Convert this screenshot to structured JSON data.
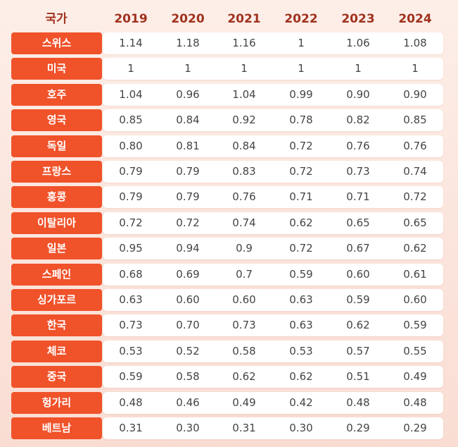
{
  "table": {
    "header": [
      "국가",
      "2019",
      "2020",
      "2021",
      "2022",
      "2023",
      "2024"
    ],
    "rows": [
      [
        "스위스",
        "1.14",
        "1.18",
        "1.16",
        "1",
        "1.06",
        "1.08"
      ],
      [
        "미국",
        "1",
        "1",
        "1",
        "1",
        "1",
        "1"
      ],
      [
        "호주",
        "1.04",
        "0.96",
        "1.04",
        "0.99",
        "0.90",
        "0.90"
      ],
      [
        "영국",
        "0.85",
        "0.84",
        "0.92",
        "0.78",
        "0.82",
        "0.85"
      ],
      [
        "독일",
        "0.80",
        "0.81",
        "0.84",
        "0.72",
        "0.76",
        "0.76"
      ],
      [
        "프랑스",
        "0.79",
        "0.79",
        "0.83",
        "0.72",
        "0.73",
        "0.74"
      ],
      [
        "홍콩",
        "0.79",
        "0.79",
        "0.76",
        "0.71",
        "0.71",
        "0.72"
      ],
      [
        "이탈리아",
        "0.72",
        "0.72",
        "0.74",
        "0.62",
        "0.65",
        "0.65"
      ],
      [
        "일본",
        "0.95",
        "0.94",
        "0.9",
        "0.72",
        "0.67",
        "0.62"
      ],
      [
        "스페인",
        "0.68",
        "0.69",
        "0.7",
        "0.59",
        "0.60",
        "0.61"
      ],
      [
        "싱가포르",
        "0.63",
        "0.60",
        "0.60",
        "0.63",
        "0.59",
        "0.60"
      ],
      [
        "한국",
        "0.73",
        "0.70",
        "0.73",
        "0.63",
        "0.62",
        "0.59"
      ],
      [
        "체코",
        "0.53",
        "0.52",
        "0.58",
        "0.53",
        "0.57",
        "0.55"
      ],
      [
        "중국",
        "0.59",
        "0.58",
        "0.62",
        "0.62",
        "0.51",
        "0.49"
      ],
      [
        "헝가리",
        "0.48",
        "0.46",
        "0.49",
        "0.42",
        "0.48",
        "0.48"
      ],
      [
        "베트남",
        "0.31",
        "0.30",
        "0.31",
        "0.30",
        "0.29",
        "0.29"
      ]
    ]
  }
}
